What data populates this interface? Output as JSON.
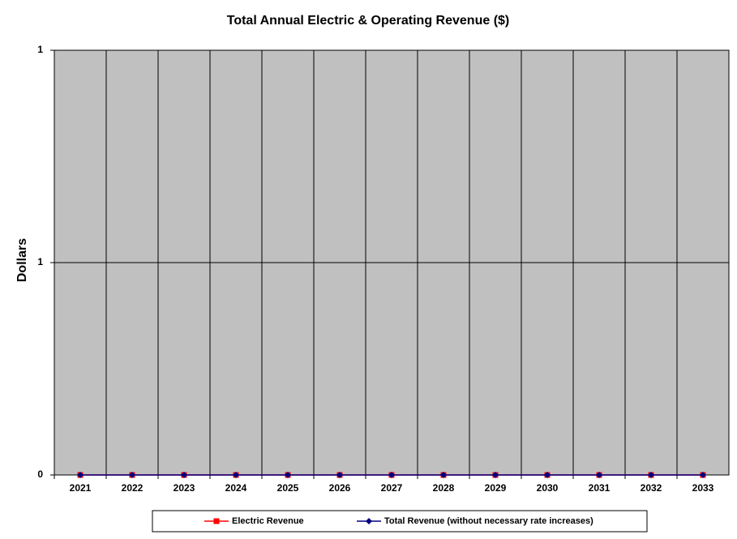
{
  "chart_data": {
    "type": "line",
    "title": "Total Annual Electric & Operating Revenue ($)",
    "y_label": "Dollars",
    "categories": [
      "2021",
      "2022",
      "2023",
      "2024",
      "2025",
      "2026",
      "2027",
      "2028",
      "2029",
      "2030",
      "2031",
      "2032",
      "2033"
    ],
    "series": [
      {
        "name": "Electric Revenue",
        "color": "#ff0000",
        "marker": "square",
        "values": [
          0,
          0,
          0,
          0,
          0,
          0,
          0,
          0,
          0,
          0,
          0,
          0,
          0
        ]
      },
      {
        "name": "Total Revenue (without necessary rate increases)",
        "color": "#000080",
        "marker": "diamond",
        "values": [
          0,
          0,
          0,
          0,
          0,
          0,
          0,
          0,
          0,
          0,
          0,
          0,
          0
        ]
      }
    ],
    "ylim": [
      0,
      1
    ],
    "yticks": [
      0,
      {
        "value": 0.5,
        "label": "1"
      },
      {
        "value": 1,
        "label": "1"
      }
    ],
    "grid": true,
    "legend": "bottom"
  }
}
